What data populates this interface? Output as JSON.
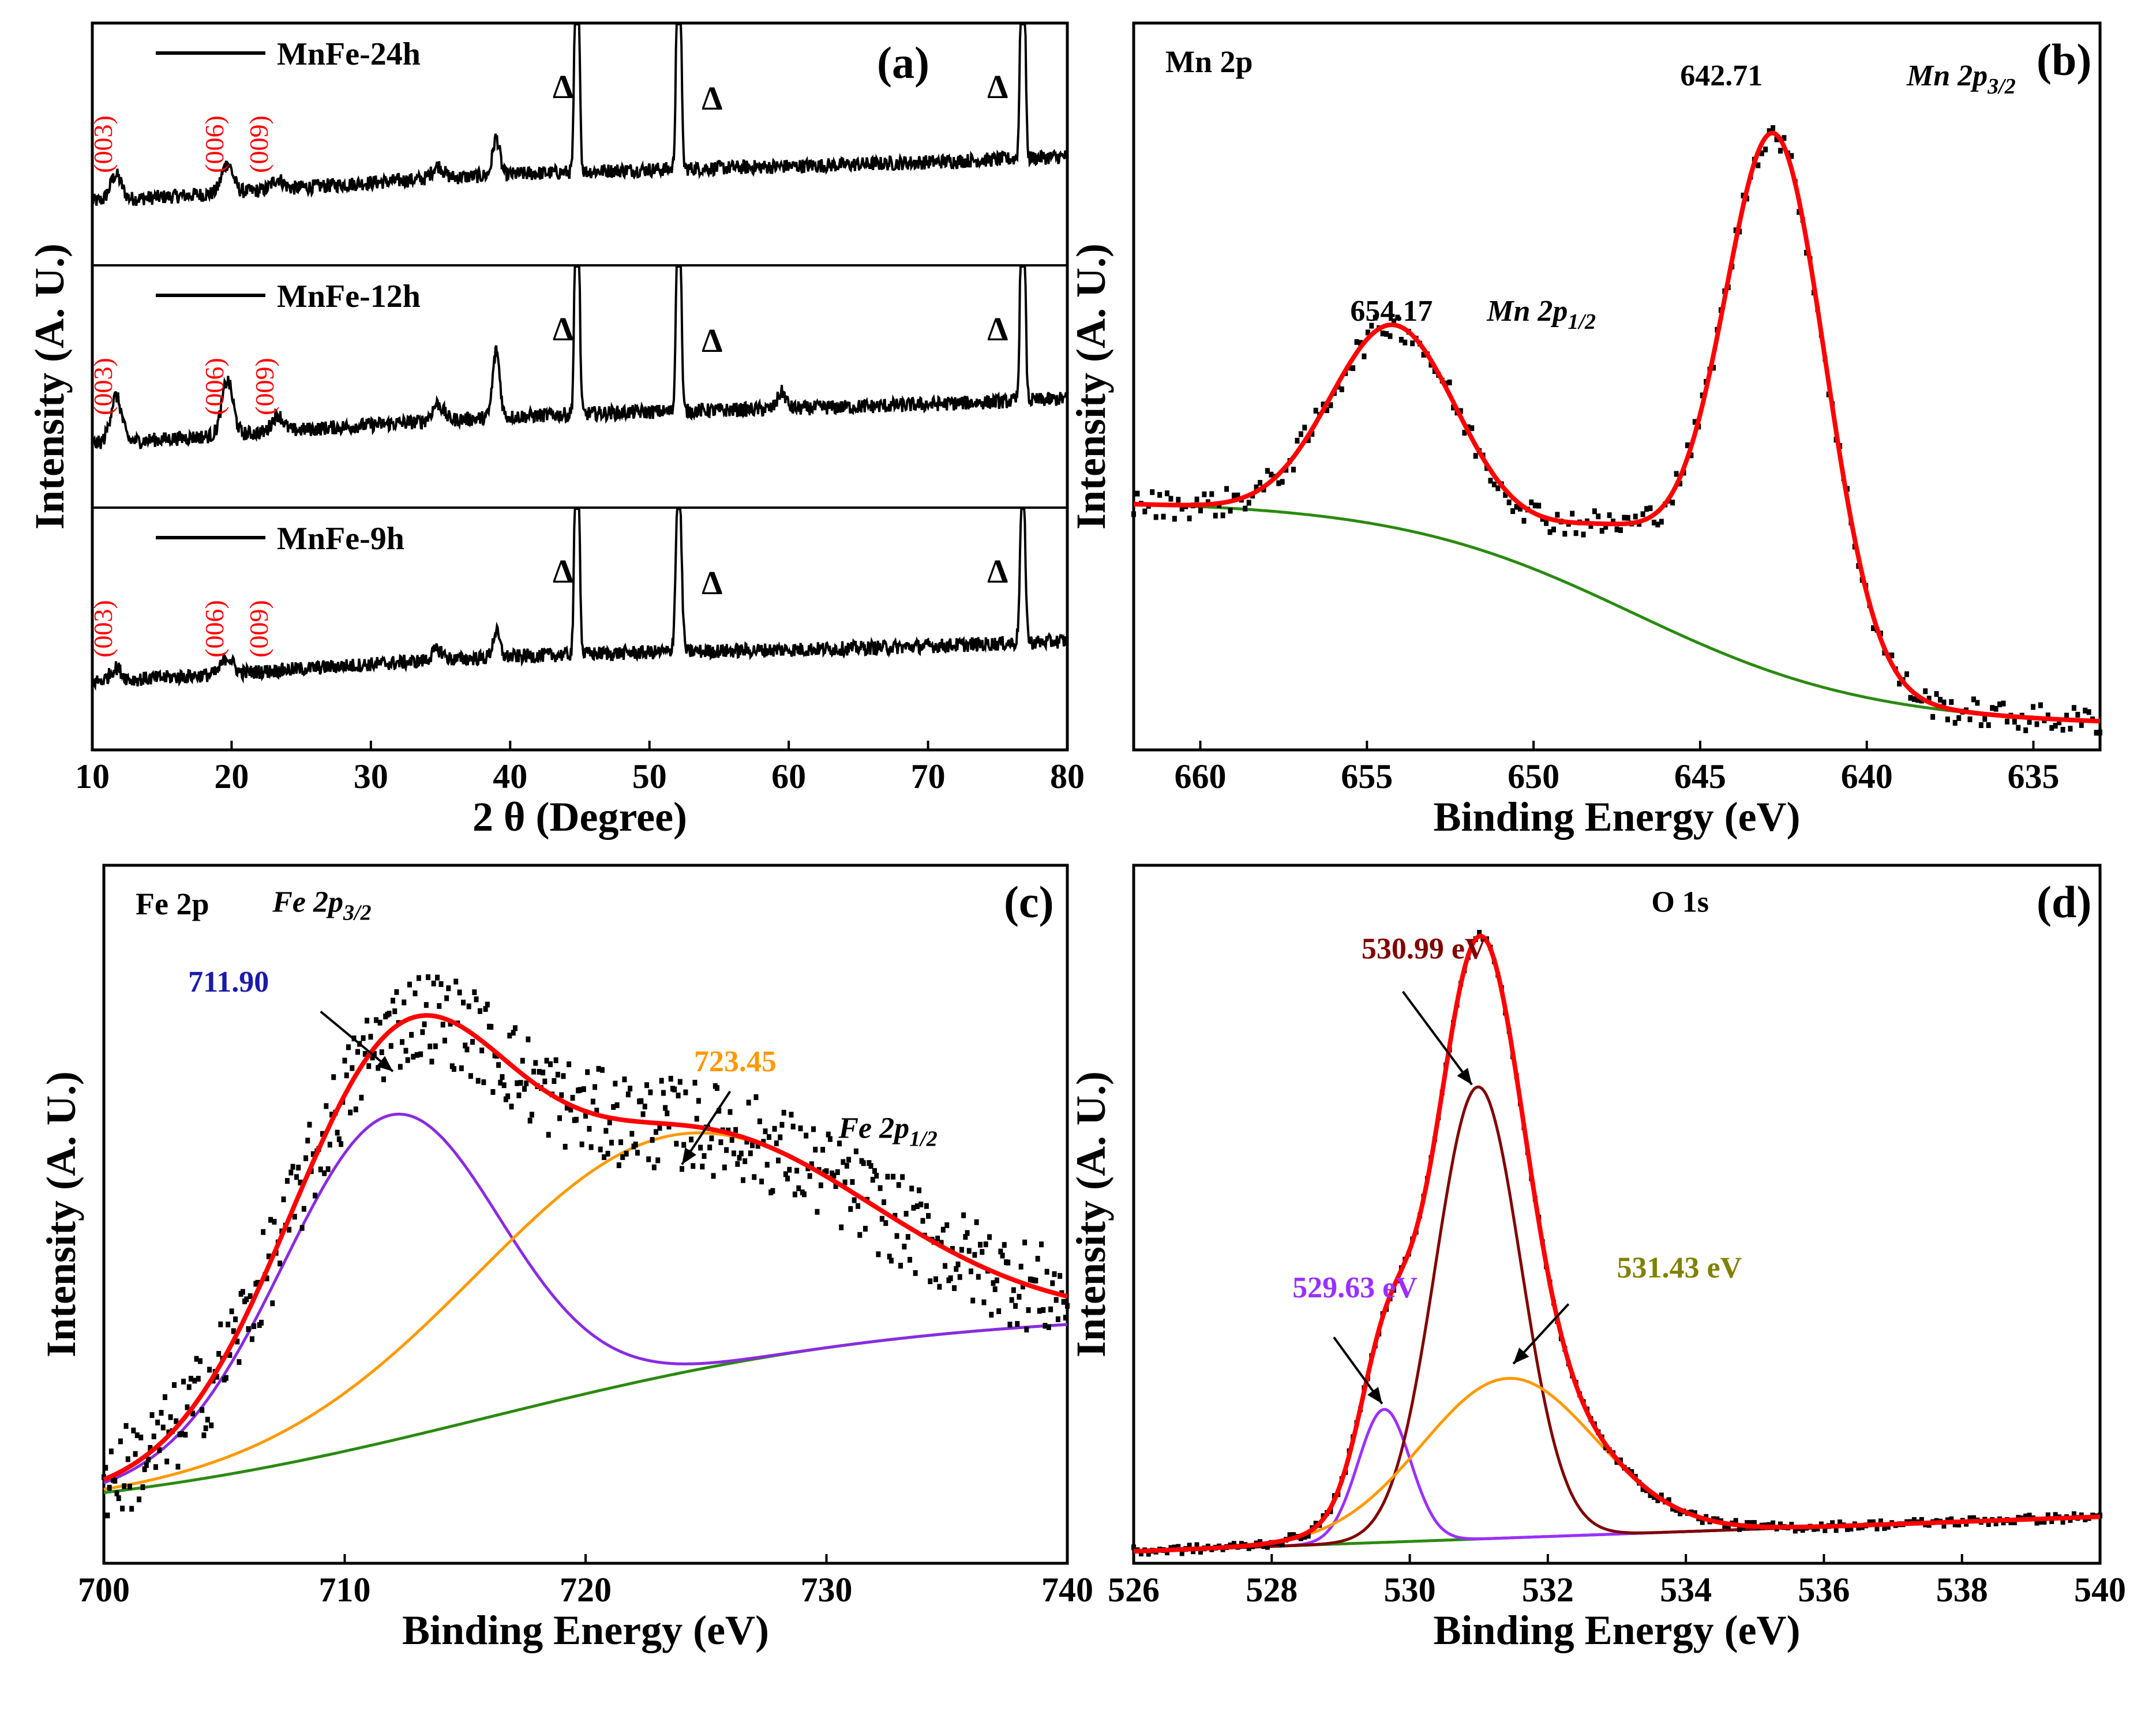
{
  "chart_data": [
    {
      "id": "a",
      "type": "line",
      "panel_label": "(a)",
      "xlabel": "2 θ (Degree)",
      "ylabel": "Intensity (A. U.)",
      "xlim": [
        10,
        80
      ],
      "xticks": [
        10,
        20,
        30,
        40,
        50,
        60,
        70,
        80
      ],
      "stack": [
        {
          "name": "MnFe-24h",
          "baseline": 0.22,
          "slope": 0.22,
          "peaks": [
            {
              "x": 11.7,
              "h": 0.12,
              "w": 0.4
            },
            {
              "x": 19.7,
              "h": 0.14,
              "w": 0.4
            },
            {
              "x": 23.3,
              "h": 0.05,
              "w": 0.4
            },
            {
              "x": 34.8,
              "h": 0.06,
              "w": 0.4
            },
            {
              "x": 39.0,
              "h": 0.18,
              "w": 0.25
            },
            {
              "x": 44.8,
              "h": 1.6,
              "w": 0.14
            },
            {
              "x": 52.1,
              "h": 1.6,
              "w": 0.14
            },
            {
              "x": 76.8,
              "h": 1.6,
              "w": 0.14
            }
          ],
          "hkl": [
            {
              "label": "(003)",
              "x": 11.4
            },
            {
              "label": "(006)",
              "x": 19.4
            },
            {
              "label": "(009)",
              "x": 22.6
            }
          ],
          "deltas": [
            43.8,
            54.5,
            75.0
          ]
        },
        {
          "name": "MnFe-12h",
          "baseline": 0.22,
          "slope": 0.22,
          "peaks": [
            {
              "x": 11.7,
              "h": 0.22,
              "w": 0.4
            },
            {
              "x": 19.7,
              "h": 0.26,
              "w": 0.4
            },
            {
              "x": 23.3,
              "h": 0.08,
              "w": 0.4
            },
            {
              "x": 34.8,
              "h": 0.08,
              "w": 0.4
            },
            {
              "x": 39.0,
              "h": 0.32,
              "w": 0.25
            },
            {
              "x": 44.8,
              "h": 1.6,
              "w": 0.14
            },
            {
              "x": 52.1,
              "h": 1.6,
              "w": 0.14
            },
            {
              "x": 59.5,
              "h": 0.08,
              "w": 0.3
            },
            {
              "x": 76.8,
              "h": 1.6,
              "w": 0.14
            }
          ],
          "hkl": [
            {
              "label": "(003)",
              "x": 11.4
            },
            {
              "label": "(006)",
              "x": 19.4
            },
            {
              "label": "(009)",
              "x": 23.0
            }
          ],
          "deltas": [
            43.8,
            54.5,
            75.0
          ]
        },
        {
          "name": "MnFe-9h",
          "baseline": 0.24,
          "slope": 0.2,
          "peaks": [
            {
              "x": 11.7,
              "h": 0.06,
              "w": 0.4
            },
            {
              "x": 19.7,
              "h": 0.08,
              "w": 0.4
            },
            {
              "x": 34.8,
              "h": 0.05,
              "w": 0.4
            },
            {
              "x": 39.0,
              "h": 0.12,
              "w": 0.25
            },
            {
              "x": 44.8,
              "h": 1.6,
              "w": 0.14
            },
            {
              "x": 52.1,
              "h": 0.92,
              "w": 0.18
            },
            {
              "x": 76.8,
              "h": 0.88,
              "w": 0.16
            }
          ],
          "hkl": [
            {
              "label": "(003)",
              "x": 11.4
            },
            {
              "label": "(006)",
              "x": 19.4
            },
            {
              "label": "(009)",
              "x": 22.6
            }
          ],
          "deltas": [
            43.8,
            54.5,
            75.0
          ]
        }
      ]
    },
    {
      "id": "b",
      "type": "line",
      "panel_label": "(b)",
      "header": "Mn 2p",
      "xlabel": "Binding Energy (eV)",
      "ylabel": "Intensity (A. U.)",
      "xlim": [
        662,
        633
      ],
      "ylim": [
        0,
        1.05
      ],
      "xticks": [
        660,
        655,
        650,
        645,
        640,
        635
      ],
      "background": {
        "color": "#2a8a10",
        "type": "shirley",
        "start": 0.36,
        "end": 0.035,
        "center": 641,
        "width": 3.6
      },
      "peaks": [
        {
          "center": 654.17,
          "height": 0.29,
          "width": 1.9
        },
        {
          "center": 642.71,
          "height": 0.73,
          "width": 1.5
        },
        {
          "center": 646.5,
          "height": 0.12,
          "width": 2.8
        }
      ],
      "annotations": [
        {
          "label": "654.17",
          "x": 655.5,
          "y": 0.62,
          "color": "#000000"
        },
        {
          "label": "Mn 2p1/2",
          "x": 651.4,
          "y": 0.62,
          "color": "#000000"
        },
        {
          "label": "642.71",
          "x": 645.6,
          "y": 0.96,
          "color": "#000000"
        },
        {
          "label": "Mn 2p3/2",
          "x": 638.8,
          "y": 0.96,
          "color": "#000000"
        }
      ]
    },
    {
      "id": "c",
      "type": "line",
      "panel_label": "(c)",
      "header": "Fe 2p",
      "xlabel": "Binding Energy (eV)",
      "ylabel": "Intensity (A. U.)",
      "xlim": [
        700,
        740
      ],
      "ylim": [
        0,
        1.05
      ],
      "xticks": [
        700,
        710,
        720,
        730,
        740
      ],
      "background": {
        "color": "#2a8a10",
        "type": "sigmoid",
        "start": 0.06,
        "end": 0.38,
        "center": 716,
        "width": 9
      },
      "components": [
        {
          "name": "711.90",
          "color": "#8a2be2",
          "center": 711.9,
          "height": 0.49,
          "width": 4.5
        },
        {
          "name": "723.45",
          "color": "#ff9900",
          "center": 723.45,
          "height": 0.36,
          "width": 8
        }
      ],
      "envelope_color": "#ff0000",
      "annotations": [
        {
          "label": "Fe 2p3/2",
          "x": 707,
          "y": 0.98,
          "color": "#000000"
        },
        {
          "label": "711.90",
          "x": 703.5,
          "y": 0.86,
          "color": "#1a1aaa"
        },
        {
          "label": "723.45",
          "x": 724.5,
          "y": 0.74,
          "color": "#ff9900"
        },
        {
          "label": "Fe 2p1/2",
          "x": 730.5,
          "y": 0.64,
          "color": "#000000"
        }
      ]
    },
    {
      "id": "d",
      "type": "line",
      "panel_label": "(d)",
      "header": "O 1s",
      "xlabel": "Binding Energy (eV)",
      "ylabel": "Intensity (A. U.)",
      "xlim": [
        526,
        540
      ],
      "ylim": [
        0,
        1.05
      ],
      "xticks": [
        526,
        528,
        530,
        532,
        534,
        536,
        538,
        540
      ],
      "background": {
        "color": "#2a8a10",
        "type": "linear",
        "start": 0.018,
        "end": 0.07
      },
      "components": [
        {
          "name": "529.63 eV",
          "color": "#9b30ff",
          "center": 529.63,
          "height": 0.2,
          "width": 0.38
        },
        {
          "name": "530.99 eV",
          "color": "#800000",
          "center": 530.99,
          "height": 0.68,
          "width": 0.62
        },
        {
          "name": "531.43 eV",
          "color": "#ff9900",
          "center": 531.43,
          "height": 0.24,
          "width": 1.25
        }
      ],
      "envelope_color": "#ff0000",
      "annotations": [
        {
          "label": "530.99 eV",
          "x": 529.3,
          "y": 0.91,
          "color": "#800000"
        },
        {
          "label": "529.63 eV",
          "x": 528.3,
          "y": 0.4,
          "color": "#9b30ff"
        },
        {
          "label": "531.43 eV",
          "x": 533.0,
          "y": 0.43,
          "color": "#808000"
        },
        {
          "label": "O 1s",
          "x": 533.5,
          "y": 0.98,
          "color": "#000000"
        }
      ]
    }
  ]
}
